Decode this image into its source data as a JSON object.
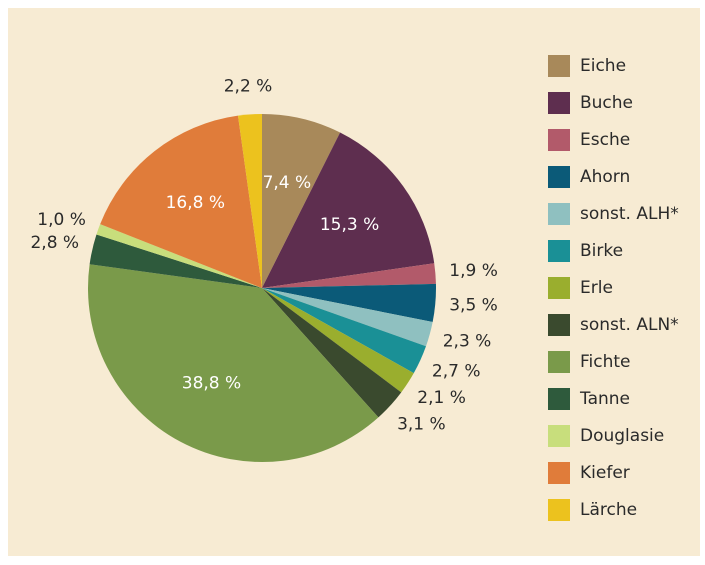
{
  "chart_data": {
    "type": "pie",
    "categories": [
      "Eiche",
      "Buche",
      "Esche",
      "Ahorn",
      "sonst. ALH*",
      "Birke",
      "Erle",
      "sonst. ALN*",
      "Fichte",
      "Tanne",
      "Douglasie",
      "Kiefer",
      "Lärche"
    ],
    "values": [
      7.4,
      15.3,
      1.9,
      3.5,
      2.3,
      2.7,
      2.1,
      3.1,
      38.8,
      2.8,
      1.0,
      16.8,
      2.2
    ],
    "value_labels": [
      "7,4 %",
      "15,3 %",
      "1,9 %",
      "3,5 %",
      "2,3 %",
      "2,7 %",
      "2,1 %",
      "3,1 %",
      "38,8 %",
      "2,8 %",
      "1,0 %",
      "16,8 %",
      "2,2 %"
    ],
    "colors": [
      "#a8895a",
      "#5e2e4f",
      "#b25a6a",
      "#0b5a78",
      "#8fc0c0",
      "#1a9096",
      "#9aae2e",
      "#3a4a2e",
      "#7a9a4a",
      "#2e5a3c",
      "#c8de7c",
      "#e07c3a",
      "#ecc21e"
    ]
  }
}
